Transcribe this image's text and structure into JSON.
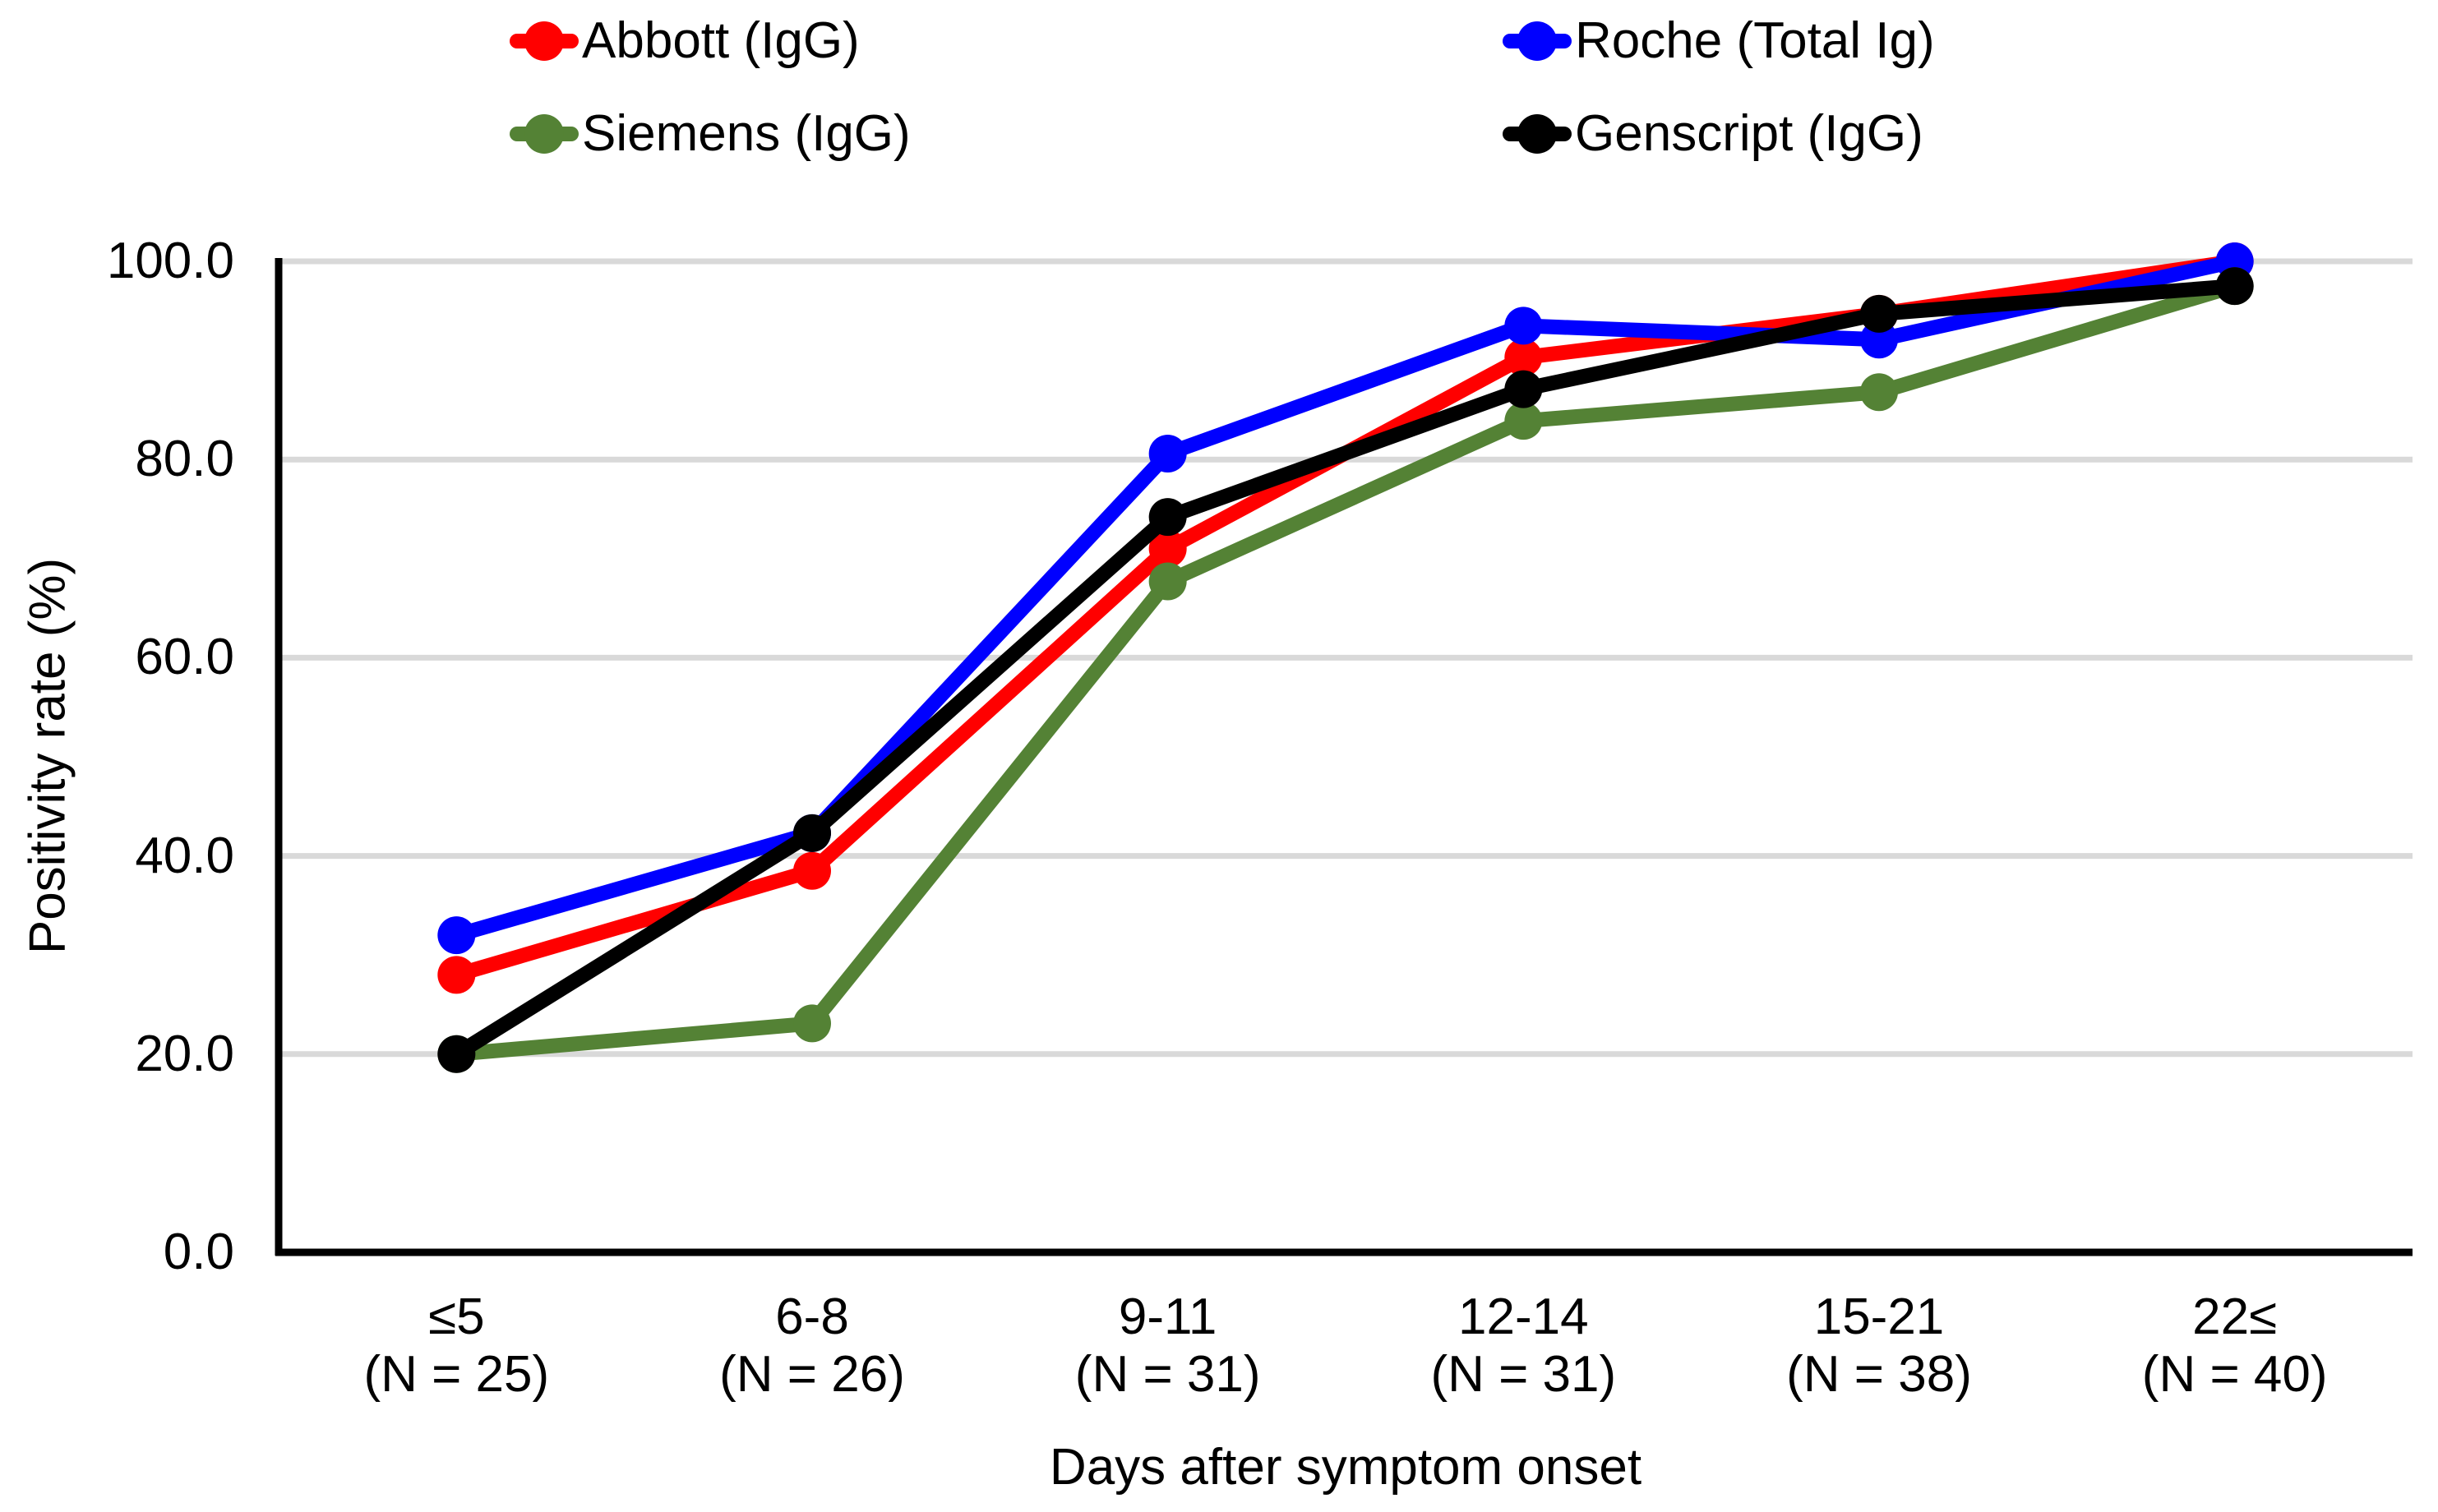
{
  "legend": {
    "items": [
      {
        "label": "Abbott (IgG)",
        "color": "#FF0000"
      },
      {
        "label": "Roche (Total Ig)",
        "color": "#0000FF"
      },
      {
        "label": "Siemens (IgG)",
        "color": "#548235"
      },
      {
        "label": "Genscript (IgG)",
        "color": "#000000"
      }
    ]
  },
  "chart_data": {
    "type": "line",
    "title": "",
    "xlabel": "Days after symptom onset",
    "ylabel": "Positivity rate (%)",
    "categories": [
      "≤5",
      "6-8",
      "9-11",
      "12-14",
      "15-21",
      "22≤"
    ],
    "category_counts": [
      "(N = 25)",
      "(N = 26)",
      "(N = 31)",
      "(N = 31)",
      "(N = 38)",
      "(N = 40)"
    ],
    "series": [
      {
        "name": "Abbott (IgG)",
        "color": "#FF0000",
        "values": [
          28.0,
          38.5,
          71.0,
          90.3,
          94.7,
          100.0
        ]
      },
      {
        "name": "Roche (Total Ig)",
        "color": "#0000FF",
        "values": [
          32.0,
          42.3,
          80.6,
          93.5,
          92.1,
          100.0
        ]
      },
      {
        "name": "Siemens (IgG)",
        "color": "#548235",
        "values": [
          20.0,
          23.1,
          67.7,
          83.9,
          86.8,
          97.5
        ]
      },
      {
        "name": "Genscript (IgG)",
        "color": "#000000",
        "values": [
          20.0,
          42.3,
          74.2,
          87.1,
          94.7,
          97.5
        ]
      }
    ],
    "ylim": [
      0,
      100
    ],
    "yticks": [
      {
        "label": "0.0",
        "value": 0
      },
      {
        "label": "20.0",
        "value": 20
      },
      {
        "label": "40.0",
        "value": 40
      },
      {
        "label": "60.0",
        "value": 60
      },
      {
        "label": "80.0",
        "value": 80
      },
      {
        "label": "100.0",
        "value": 100
      }
    ],
    "grid": true,
    "grid_color": "#D9D9D9",
    "axis_color": "#000000",
    "legend_position": "top",
    "marker": "circle"
  }
}
